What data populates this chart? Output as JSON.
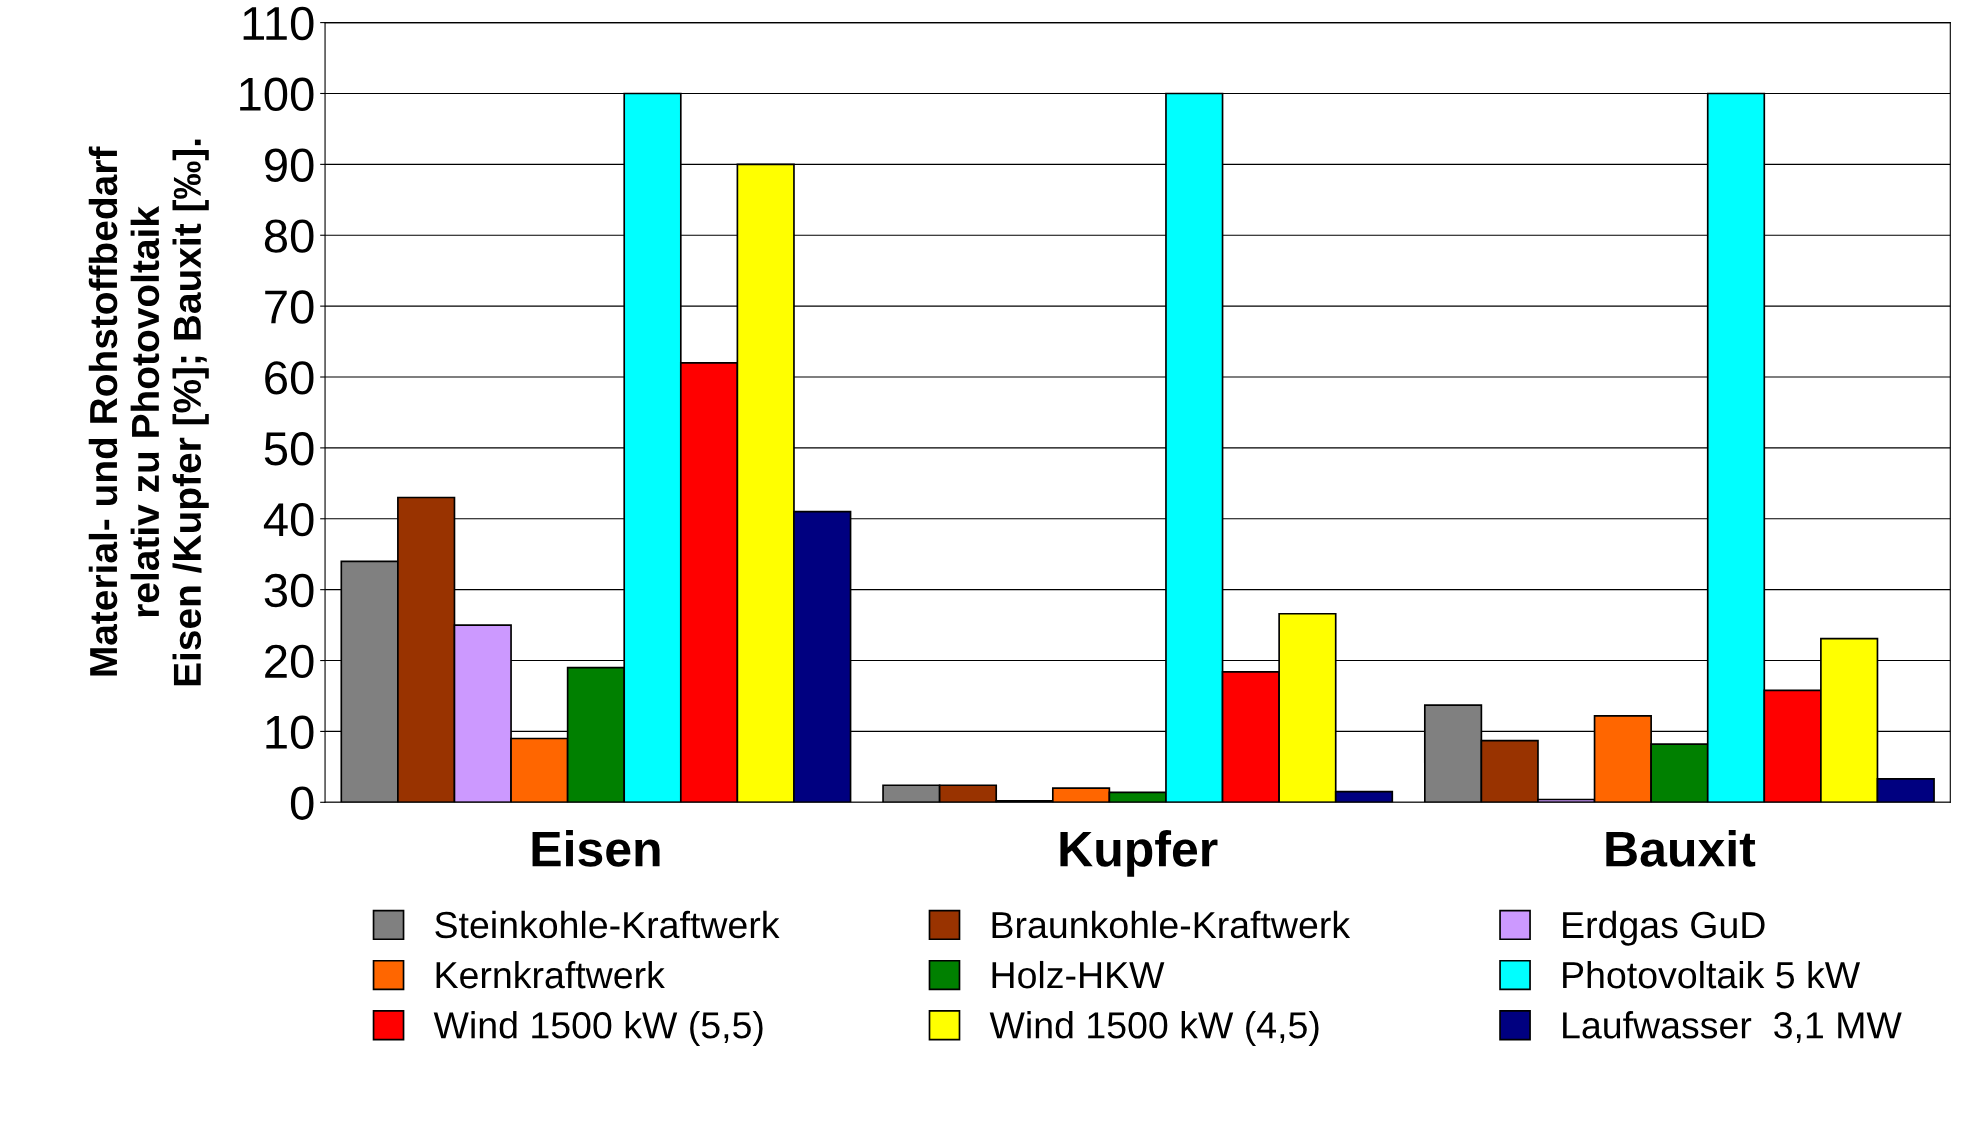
{
  "chart_data": {
    "type": "bar",
    "ylabel": "Material- und Rohstoffbedarf\nrelativ zu Photovoltaik\nEisen /Kupfer [%]; Bauxit [‰].",
    "categories": [
      "Eisen",
      "Kupfer",
      "Bauxit"
    ],
    "series": [
      {
        "name": "Steinkohle-Kraftwerk",
        "color": "#808080",
        "values": [
          34,
          2.4,
          13.7
        ]
      },
      {
        "name": "Braunkohle-Kraftwerk",
        "color": "#993300",
        "values": [
          43,
          2.4,
          8.7
        ]
      },
      {
        "name": "Erdgas GuD",
        "color": "#cc99ff",
        "values": [
          25,
          0.2,
          0.4
        ]
      },
      {
        "name": "Kernkraftwerk",
        "color": "#ff6600",
        "values": [
          9,
          2,
          12.2
        ]
      },
      {
        "name": "Holz-HKW",
        "color": "#008000",
        "values": [
          19,
          1.4,
          8.2
        ]
      },
      {
        "name": "Photovoltaik 5 kW",
        "color": "#00ffff",
        "values": [
          100,
          100,
          100
        ]
      },
      {
        "name": "Wind 1500 kW (5,5)",
        "color": "#ff0000",
        "values": [
          62,
          18.4,
          15.8
        ]
      },
      {
        "name": "Wind 1500 kW (4,5)",
        "color": "#ffff00",
        "values": [
          90,
          26.6,
          23.1
        ]
      },
      {
        "name": "Laufwasser  3,1 MW",
        "color": "#000080",
        "values": [
          41,
          1.5,
          3.3
        ]
      }
    ],
    "ylim": [
      0,
      110
    ],
    "yticks": [
      0,
      10,
      20,
      30,
      40,
      50,
      60,
      70,
      80,
      90,
      100,
      110
    ],
    "grid": "y",
    "legend": "bottom"
  }
}
